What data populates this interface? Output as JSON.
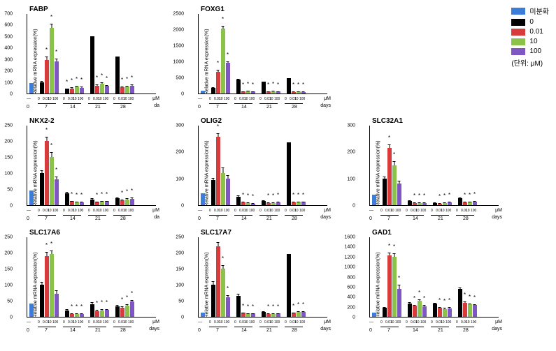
{
  "colors": {
    "undiff": "#3b7dd8",
    "c0": "#000000",
    "c001": "#d83b3b",
    "c10": "#8bc34a",
    "c100": "#7e57c2"
  },
  "legend": {
    "items": [
      {
        "color": "#3b7dd8",
        "label": "미분화"
      },
      {
        "color": "#000000",
        "label": "0"
      },
      {
        "color": "#d83b3b",
        "label": "0.01"
      },
      {
        "color": "#8bc34a",
        "label": "10"
      },
      {
        "color": "#7e57c2",
        "label": "100"
      }
    ],
    "note": "(단위: μM)"
  },
  "ylabel": "Relative mRNA expression(%)",
  "doses": [
    "0",
    "0.01",
    "10",
    "100"
  ],
  "days": [
    "7",
    "14",
    "21",
    "28"
  ],
  "unit_label": "μM",
  "days_label": "days",
  "day_label_alt": "da",
  "charts": [
    {
      "title": "FABP",
      "ymax": 700,
      "ystep": 100,
      "undiff": 90,
      "groups": [
        {
          "vals": [
            100,
            290,
            570,
            280
          ],
          "err": [
            10,
            30,
            40,
            25
          ],
          "star": [
            0,
            1,
            1,
            1
          ]
        },
        {
          "vals": [
            40,
            45,
            60,
            50
          ],
          "err": [
            5,
            8,
            8,
            8
          ],
          "star": [
            1,
            1,
            1,
            1
          ]
        },
        {
          "vals": [
            500,
            70,
            85,
            65
          ],
          "err": [
            0,
            10,
            10,
            10
          ],
          "star": [
            0,
            1,
            1,
            1
          ]
        },
        {
          "vals": [
            320,
            55,
            60,
            70
          ],
          "err": [
            0,
            8,
            8,
            8
          ],
          "star": [
            0,
            1,
            1,
            1
          ]
        }
      ]
    },
    {
      "title": "FOXG1",
      "ymax": 2500,
      "ystep": 500,
      "undiff": 80,
      "groups": [
        {
          "vals": [
            180,
            680,
            2020,
            950
          ],
          "err": [
            20,
            60,
            80,
            60
          ],
          "star": [
            0,
            1,
            1,
            1
          ]
        },
        {
          "vals": [
            430,
            60,
            80,
            60
          ],
          "err": [
            30,
            10,
            10,
            10
          ],
          "star": [
            0,
            1,
            1,
            1
          ]
        },
        {
          "vals": [
            380,
            60,
            70,
            60
          ],
          "err": [
            0,
            10,
            10,
            10
          ],
          "star": [
            0,
            1,
            1,
            1
          ]
        },
        {
          "vals": [
            470,
            50,
            60,
            50
          ],
          "err": [
            0,
            10,
            10,
            10
          ],
          "star": [
            0,
            1,
            1,
            1
          ]
        }
      ]
    },
    null,
    {
      "title": "NKX2-2",
      "ymax": 250,
      "ystep": 50,
      "undiff": 45,
      "groups": [
        {
          "vals": [
            100,
            200,
            150,
            80
          ],
          "err": [
            8,
            12,
            15,
            10
          ],
          "star": [
            0,
            1,
            1,
            1
          ]
        },
        {
          "vals": [
            38,
            12,
            10,
            8
          ],
          "err": [
            4,
            2,
            2,
            2
          ],
          "star": [
            0,
            1,
            1,
            1
          ]
        },
        {
          "vals": [
            18,
            10,
            12,
            12
          ],
          "err": [
            3,
            2,
            2,
            2
          ],
          "star": [
            0,
            1,
            1,
            1
          ]
        },
        {
          "vals": [
            22,
            15,
            18,
            20
          ],
          "err": [
            3,
            3,
            3,
            3
          ],
          "star": [
            0,
            1,
            1,
            1
          ]
        }
      ]
    },
    {
      "title": "OLIG2",
      "ymax": 300,
      "ystep": 100,
      "undiff": 45,
      "groups": [
        {
          "vals": [
            95,
            255,
            120,
            100
          ],
          "err": [
            8,
            15,
            20,
            12
          ],
          "star": [
            0,
            1,
            0,
            0
          ]
        },
        {
          "vals": [
            32,
            10,
            8,
            6
          ],
          "err": [
            4,
            2,
            2,
            2
          ],
          "star": [
            0,
            1,
            1,
            1
          ]
        },
        {
          "vals": [
            15,
            8,
            8,
            10
          ],
          "err": [
            3,
            2,
            2,
            2
          ],
          "star": [
            0,
            1,
            1,
            1
          ]
        },
        {
          "vals": [
            235,
            10,
            12,
            12
          ],
          "err": [
            0,
            2,
            2,
            2
          ],
          "star": [
            0,
            1,
            1,
            1
          ]
        }
      ]
    },
    {
      "title": "SLC32A1",
      "ymax": 300,
      "ystep": 100,
      "undiff": 40,
      "groups": [
        {
          "vals": [
            100,
            215,
            150,
            82
          ],
          "err": [
            8,
            12,
            15,
            10
          ],
          "star": [
            0,
            1,
            1,
            0
          ]
        },
        {
          "vals": [
            15,
            8,
            8,
            8
          ],
          "err": [
            3,
            2,
            2,
            2
          ],
          "star": [
            0,
            1,
            1,
            1
          ]
        },
        {
          "vals": [
            8,
            6,
            8,
            10
          ],
          "err": [
            2,
            2,
            2,
            2
          ],
          "star": [
            0,
            1,
            1,
            1
          ]
        },
        {
          "vals": [
            25,
            10,
            12,
            14
          ],
          "err": [
            3,
            2,
            2,
            2
          ],
          "star": [
            0,
            1,
            1,
            1
          ]
        }
      ]
    },
    {
      "title": "SLC17A6",
      "ymax": 250,
      "ystep": 50,
      "undiff": 42,
      "groups": [
        {
          "vals": [
            100,
            190,
            195,
            72
          ],
          "err": [
            8,
            12,
            12,
            10
          ],
          "star": [
            0,
            1,
            1,
            0
          ]
        },
        {
          "vals": [
            20,
            8,
            8,
            8
          ],
          "err": [
            3,
            2,
            2,
            2
          ],
          "star": [
            0,
            1,
            1,
            1
          ]
        },
        {
          "vals": [
            40,
            18,
            20,
            22
          ],
          "err": [
            5,
            3,
            3,
            3
          ],
          "star": [
            0,
            1,
            1,
            1
          ]
        },
        {
          "vals": [
            32,
            28,
            35,
            48
          ],
          "err": [
            4,
            4,
            4,
            5
          ],
          "star": [
            0,
            1,
            1,
            1
          ]
        }
      ]
    },
    {
      "title": "SLC17A7",
      "ymax": 250,
      "ystep": 50,
      "undiff": 12,
      "groups": [
        {
          "vals": [
            100,
            220,
            150,
            60
          ],
          "err": [
            10,
            12,
            10,
            8
          ],
          "star": [
            0,
            1,
            1,
            1
          ]
        },
        {
          "vals": [
            65,
            12,
            10,
            10
          ],
          "err": [
            6,
            2,
            2,
            2
          ],
          "star": [
            0,
            1,
            1,
            1
          ]
        },
        {
          "vals": [
            15,
            8,
            8,
            10
          ],
          "err": [
            3,
            2,
            2,
            2
          ],
          "star": [
            0,
            1,
            1,
            1
          ]
        },
        {
          "vals": [
            195,
            12,
            15,
            15
          ],
          "err": [
            0,
            2,
            2,
            2
          ],
          "star": [
            0,
            1,
            1,
            1
          ]
        }
      ]
    },
    {
      "title": "GAD1",
      "ymax": 1600,
      "ystep": 200,
      "undiff": 90,
      "groups": [
        {
          "vals": [
            180,
            1220,
            1200,
            560
          ],
          "err": [
            20,
            60,
            70,
            80
          ],
          "star": [
            0,
            1,
            1,
            1
          ]
        },
        {
          "vals": [
            270,
            220,
            320,
            210
          ],
          "err": [
            20,
            20,
            30,
            20
          ],
          "star": [
            0,
            1,
            1,
            1
          ]
        },
        {
          "vals": [
            260,
            180,
            160,
            170
          ],
          "err": [
            20,
            20,
            20,
            20
          ],
          "star": [
            0,
            1,
            1,
            1
          ]
        },
        {
          "vals": [
            550,
            280,
            250,
            230
          ],
          "err": [
            30,
            20,
            20,
            20
          ],
          "star": [
            0,
            1,
            1,
            1
          ]
        }
      ]
    }
  ]
}
